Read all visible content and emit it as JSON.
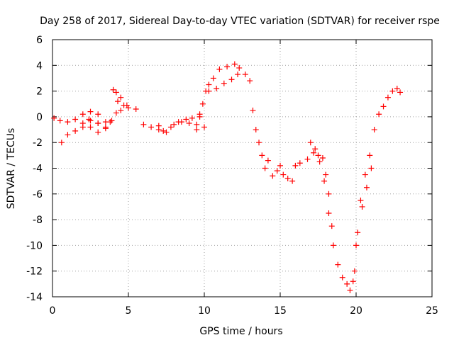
{
  "chart_data": {
    "type": "scatter",
    "title": "Day 258 of 2017, Sidereal Day-to-day VTEC variation (SDTVAR) for receiver rspe",
    "xlabel": "GPS time / hours",
    "ylabel": "SDTVAR / TECUs",
    "xlim": [
      0,
      25
    ],
    "ylim": [
      -14,
      6
    ],
    "xticks": [
      0,
      5,
      10,
      15,
      20,
      25
    ],
    "yticks": [
      -14,
      -12,
      -10,
      -8,
      -6,
      -4,
      -2,
      0,
      2,
      4,
      6
    ],
    "grid": true,
    "marker": "+",
    "color": "#ff0000",
    "series": [
      {
        "x": [
          0.1,
          0.5,
          1.0,
          1.5,
          2.0,
          2.5,
          3.0,
          3.5,
          3.9,
          3.5,
          3.0,
          2.5,
          2.0,
          1.5,
          1.0,
          0.6,
          3.0,
          2.5,
          2.0,
          2.4,
          3.0,
          3.5,
          3.8,
          4.0,
          4.2,
          4.5,
          4.9,
          4.5,
          4.2,
          4.3,
          4.7,
          5.0,
          5.5,
          6.0,
          6.5,
          7.0,
          7.5,
          8.0,
          8.5,
          9.0,
          9.5,
          10.0,
          9.7,
          9.2,
          8.8,
          8.3,
          7.8,
          7.3,
          7.0,
          9.5,
          9.7,
          9.9,
          10.1,
          10.3,
          10.6,
          11.0,
          11.5,
          12.0,
          12.3,
          12.7,
          13.0,
          13.2,
          13.4,
          13.6,
          13.8,
          14.0,
          14.2,
          14.5,
          14.8,
          15.0,
          15.2,
          15.5,
          15.8,
          16.0,
          12.2,
          11.8,
          11.3,
          10.8,
          10.3,
          16.3,
          16.8,
          17.2,
          17.5,
          17.8,
          18.0,
          18.2,
          18.4,
          17.0,
          17.3,
          17.6,
          17.9,
          18.2,
          18.5,
          18.8,
          19.1,
          19.4,
          19.6,
          19.8,
          20.0,
          20.3,
          20.6,
          20.9,
          21.2,
          21.5,
          21.8,
          22.1,
          22.4,
          22.7,
          22.9,
          19.9,
          20.1,
          20.4,
          20.7,
          21.0
        ],
        "y": [
          -0.1,
          -0.3,
          -0.4,
          -0.2,
          0.2,
          0.4,
          0.2,
          -0.4,
          -0.3,
          -0.9,
          -1.2,
          -0.3,
          -0.8,
          -1.1,
          -1.4,
          -2.0,
          -0.5,
          -0.8,
          -0.5,
          -0.2,
          -0.5,
          -0.8,
          -0.4,
          2.1,
          1.9,
          1.5,
          0.9,
          0.5,
          0.3,
          1.2,
          0.9,
          0.7,
          0.6,
          -0.6,
          -0.8,
          -0.7,
          -1.2,
          -0.6,
          -0.4,
          -0.5,
          -0.6,
          -0.8,
          0.2,
          -0.1,
          -0.2,
          -0.4,
          -0.8,
          -1.1,
          -1.0,
          -1.0,
          0.0,
          1.0,
          2.0,
          2.5,
          3.0,
          3.7,
          3.9,
          4.1,
          3.8,
          3.3,
          2.8,
          0.5,
          -1.0,
          -2.0,
          -3.0,
          -4.0,
          -3.4,
          -4.6,
          -4.2,
          -3.8,
          -4.5,
          -4.8,
          -5.0,
          -3.8,
          3.3,
          2.9,
          2.6,
          2.2,
          2.0,
          -3.6,
          -3.3,
          -2.8,
          -3.0,
          -3.2,
          -4.5,
          -6.0,
          -8.5,
          -2.0,
          -2.5,
          -3.5,
          -5.0,
          -7.5,
          -10.0,
          -11.5,
          -12.5,
          -13.0,
          -13.5,
          -12.8,
          -10.0,
          -6.5,
          -4.5,
          -3.0,
          -1.0,
          0.2,
          0.8,
          1.5,
          2.0,
          2.2,
          1.9,
          -12.0,
          -9.0,
          -7.0,
          -5.5,
          -4.0
        ]
      }
    ]
  }
}
